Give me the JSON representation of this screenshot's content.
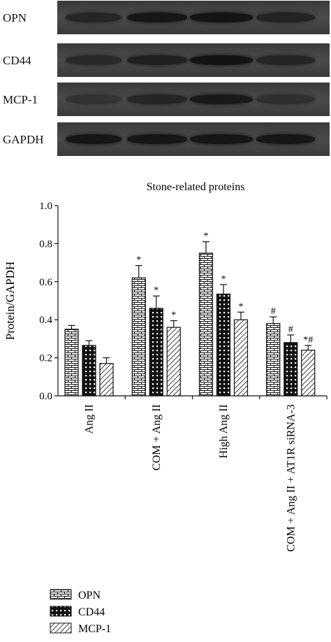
{
  "blots": [
    {
      "label": "OPN",
      "intensity": [
        0.55,
        0.8,
        0.85,
        0.6
      ]
    },
    {
      "label": "CD44",
      "intensity": [
        0.5,
        0.65,
        0.85,
        0.55
      ]
    },
    {
      "label": "MCP-1",
      "intensity": [
        0.35,
        0.55,
        0.75,
        0.4
      ]
    },
    {
      "label": "GAPDH",
      "intensity": [
        0.8,
        0.8,
        0.8,
        0.8
      ]
    }
  ],
  "chart_data": {
    "type": "bar",
    "title": "Stone-related proteins",
    "ylabel": "Protein/GAPDH",
    "xlabel": "",
    "ylim": [
      0,
      1.0
    ],
    "yticks": [
      "0.0",
      "0.2",
      "0.4",
      "0.6",
      "0.8",
      "1.0"
    ],
    "categories": [
      "Ang II",
      "COM + Ang II",
      "High Ang II",
      "COM + Ang II + AT1R siRNA-3"
    ],
    "series": [
      {
        "name": "OPN",
        "pattern": "bricks",
        "values": [
          0.35,
          0.62,
          0.75,
          0.38
        ],
        "errors": [
          0.02,
          0.065,
          0.06,
          0.035
        ],
        "annotations": [
          "",
          "*",
          "*",
          "#"
        ]
      },
      {
        "name": "CD44",
        "pattern": "squares",
        "values": [
          0.265,
          0.46,
          0.535,
          0.28
        ],
        "errors": [
          0.025,
          0.065,
          0.05,
          0.04
        ],
        "annotations": [
          "",
          "*",
          "*",
          "#"
        ]
      },
      {
        "name": "MCP-1",
        "pattern": "diagonal",
        "values": [
          0.17,
          0.36,
          0.4,
          0.24
        ],
        "errors": [
          0.03,
          0.035,
          0.04,
          0.025
        ],
        "annotations": [
          "",
          "*",
          "*",
          "*#"
        ]
      }
    ],
    "legend_position": "bottom-left",
    "grid": false
  }
}
